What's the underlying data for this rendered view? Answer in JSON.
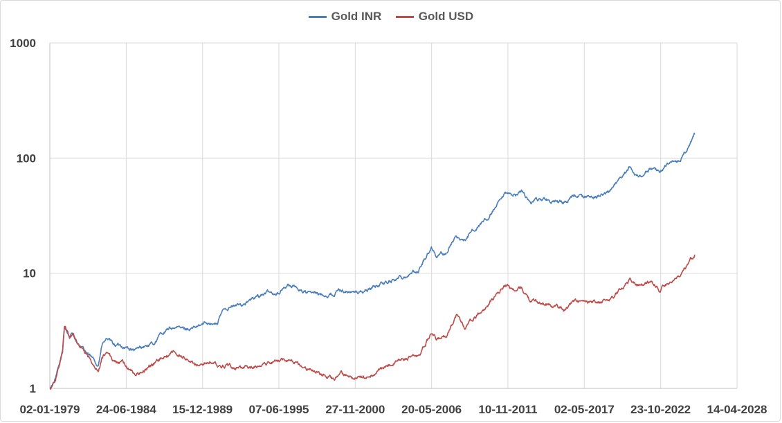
{
  "chart_data": {
    "type": "line",
    "title": "",
    "xlabel": "",
    "ylabel": "",
    "y_scale": "log10",
    "ylim": [
      1,
      1000
    ],
    "y_ticks": [
      1,
      10,
      100,
      1000
    ],
    "y_tick_labels": [
      "1",
      "10",
      "100",
      "1000"
    ],
    "xlim": [
      "1979-01-02",
      "2028-04-14"
    ],
    "x_tick_labels": [
      "02-01-1979",
      "24-06-1984",
      "15-12-1989",
      "07-06-1995",
      "27-11-2000",
      "20-05-2006",
      "10-11-2011",
      "02-05-2017",
      "23-10-2022",
      "14-04-2028"
    ],
    "grid": "vertical and horizontal",
    "legend_position": "top-center",
    "series": [
      {
        "name": "Gold INR",
        "color": "#4a7ebb",
        "points": [
          [
            "1979-01-02",
            1.0
          ],
          [
            "1979-06-01",
            1.2
          ],
          [
            "1979-12-01",
            2.0
          ],
          [
            "1980-01-21",
            3.5
          ],
          [
            "1980-06-01",
            2.8
          ],
          [
            "1980-09-01",
            3.0
          ],
          [
            "1981-03-01",
            2.3
          ],
          [
            "1981-09-01",
            2.0
          ],
          [
            "1982-06-21",
            1.6
          ],
          [
            "1982-10-01",
            2.4
          ],
          [
            "1983-02-15",
            2.7
          ],
          [
            "1983-07-01",
            2.4
          ],
          [
            "1984-06-01",
            2.3
          ],
          [
            "1985-02-15",
            2.1
          ],
          [
            "1985-09-01",
            2.3
          ],
          [
            "1986-06-01",
            2.4
          ],
          [
            "1987-01-01",
            3.0
          ],
          [
            "1987-12-01",
            3.4
          ],
          [
            "1988-06-01",
            3.3
          ],
          [
            "1989-06-01",
            3.3
          ],
          [
            "1990-06-01",
            3.8
          ],
          [
            "1991-01-01",
            3.6
          ],
          [
            "1991-07-01",
            5.0
          ],
          [
            "1992-06-01",
            5.2
          ],
          [
            "1993-06-01",
            5.8
          ],
          [
            "1994-06-01",
            6.7
          ],
          [
            "1995-06-01",
            6.8
          ],
          [
            "1996-02-01",
            8.0
          ],
          [
            "1996-09-01",
            7.5
          ],
          [
            "1997-06-01",
            6.8
          ],
          [
            "1998-06-01",
            6.5
          ],
          [
            "1999-06-01",
            6.6
          ],
          [
            "1999-10-01",
            7.2
          ],
          [
            "2000-11-01",
            6.8
          ],
          [
            "2001-06-01",
            6.9
          ],
          [
            "2002-06-01",
            7.8
          ],
          [
            "2003-06-01",
            8.6
          ],
          [
            "2004-06-01",
            9.5
          ],
          [
            "2005-06-01",
            10.5
          ],
          [
            "2006-05-15",
            17.0
          ],
          [
            "2006-10-01",
            14.0
          ],
          [
            "2007-06-01",
            15.0
          ],
          [
            "2008-03-01",
            21.0
          ],
          [
            "2008-10-01",
            19.0
          ],
          [
            "2009-06-01",
            24.0
          ],
          [
            "2010-06-01",
            30.0
          ],
          [
            "2011-09-01",
            47.0
          ],
          [
            "2012-06-01",
            49.0
          ],
          [
            "2012-11-01",
            52.0
          ],
          [
            "2013-06-01",
            42.0
          ],
          [
            "2014-06-01",
            44.0
          ],
          [
            "2015-06-01",
            41.0
          ],
          [
            "2015-12-01",
            40.0
          ],
          [
            "2016-07-01",
            47.0
          ],
          [
            "2017-06-01",
            45.0
          ],
          [
            "2018-06-01",
            47.0
          ],
          [
            "2019-06-01",
            55.0
          ],
          [
            "2020-08-01",
            82.0
          ],
          [
            "2021-03-01",
            70.0
          ],
          [
            "2022-03-01",
            80.0
          ],
          [
            "2022-10-01",
            75.0
          ],
          [
            "2023-06-01",
            90.0
          ],
          [
            "2024-03-01",
            95.0
          ],
          [
            "2024-09-01",
            115.0
          ],
          [
            "2025-04-01",
            160.0
          ]
        ]
      },
      {
        "name": "Gold USD",
        "color": "#be4b48",
        "points": [
          [
            "1979-01-02",
            1.0
          ],
          [
            "1979-06-01",
            1.2
          ],
          [
            "1979-12-01",
            2.2
          ],
          [
            "1980-01-21",
            3.6
          ],
          [
            "1980-06-01",
            2.8
          ],
          [
            "1980-09-01",
            3.1
          ],
          [
            "1981-03-01",
            2.2
          ],
          [
            "1981-09-01",
            1.9
          ],
          [
            "1982-06-21",
            1.4
          ],
          [
            "1982-10-01",
            1.9
          ],
          [
            "1983-02-15",
            2.1
          ],
          [
            "1983-07-01",
            1.8
          ],
          [
            "1984-06-01",
            1.6
          ],
          [
            "1985-02-15",
            1.3
          ],
          [
            "1985-09-01",
            1.4
          ],
          [
            "1986-06-01",
            1.6
          ],
          [
            "1987-01-01",
            1.8
          ],
          [
            "1987-12-01",
            2.1
          ],
          [
            "1988-06-01",
            1.9
          ],
          [
            "1989-06-01",
            1.6
          ],
          [
            "1990-06-01",
            1.7
          ],
          [
            "1991-01-01",
            1.6
          ],
          [
            "1991-07-01",
            1.6
          ],
          [
            "1992-06-01",
            1.5
          ],
          [
            "1993-06-01",
            1.5
          ],
          [
            "1994-06-01",
            1.7
          ],
          [
            "1995-06-01",
            1.7
          ],
          [
            "1996-02-01",
            1.8
          ],
          [
            "1996-09-01",
            1.7
          ],
          [
            "1997-06-01",
            1.5
          ],
          [
            "1998-06-01",
            1.3
          ],
          [
            "1999-06-01",
            1.2
          ],
          [
            "1999-10-01",
            1.4
          ],
          [
            "2000-11-01",
            1.2
          ],
          [
            "2001-06-01",
            1.2
          ],
          [
            "2002-06-01",
            1.4
          ],
          [
            "2003-06-01",
            1.6
          ],
          [
            "2004-06-01",
            1.8
          ],
          [
            "2005-06-01",
            1.9
          ],
          [
            "2006-05-15",
            3.0
          ],
          [
            "2006-10-01",
            2.6
          ],
          [
            "2007-06-01",
            2.9
          ],
          [
            "2008-03-01",
            4.4
          ],
          [
            "2008-10-01",
            3.4
          ],
          [
            "2009-06-01",
            4.0
          ],
          [
            "2010-06-01",
            5.2
          ],
          [
            "2011-09-01",
            8.0
          ],
          [
            "2012-06-01",
            7.0
          ],
          [
            "2012-11-01",
            7.5
          ],
          [
            "2013-06-01",
            5.8
          ],
          [
            "2014-06-01",
            5.5
          ],
          [
            "2015-06-01",
            5.1
          ],
          [
            "2015-12-01",
            4.8
          ],
          [
            "2016-07-01",
            5.8
          ],
          [
            "2017-06-01",
            5.5
          ],
          [
            "2018-06-01",
            5.5
          ],
          [
            "2019-06-01",
            6.2
          ],
          [
            "2020-08-01",
            8.8
          ],
          [
            "2021-03-01",
            7.8
          ],
          [
            "2022-03-01",
            8.5
          ],
          [
            "2022-10-01",
            7.3
          ],
          [
            "2023-06-01",
            8.5
          ],
          [
            "2024-03-01",
            9.0
          ],
          [
            "2024-09-01",
            11.0
          ],
          [
            "2025-04-01",
            14.5
          ]
        ]
      }
    ]
  }
}
